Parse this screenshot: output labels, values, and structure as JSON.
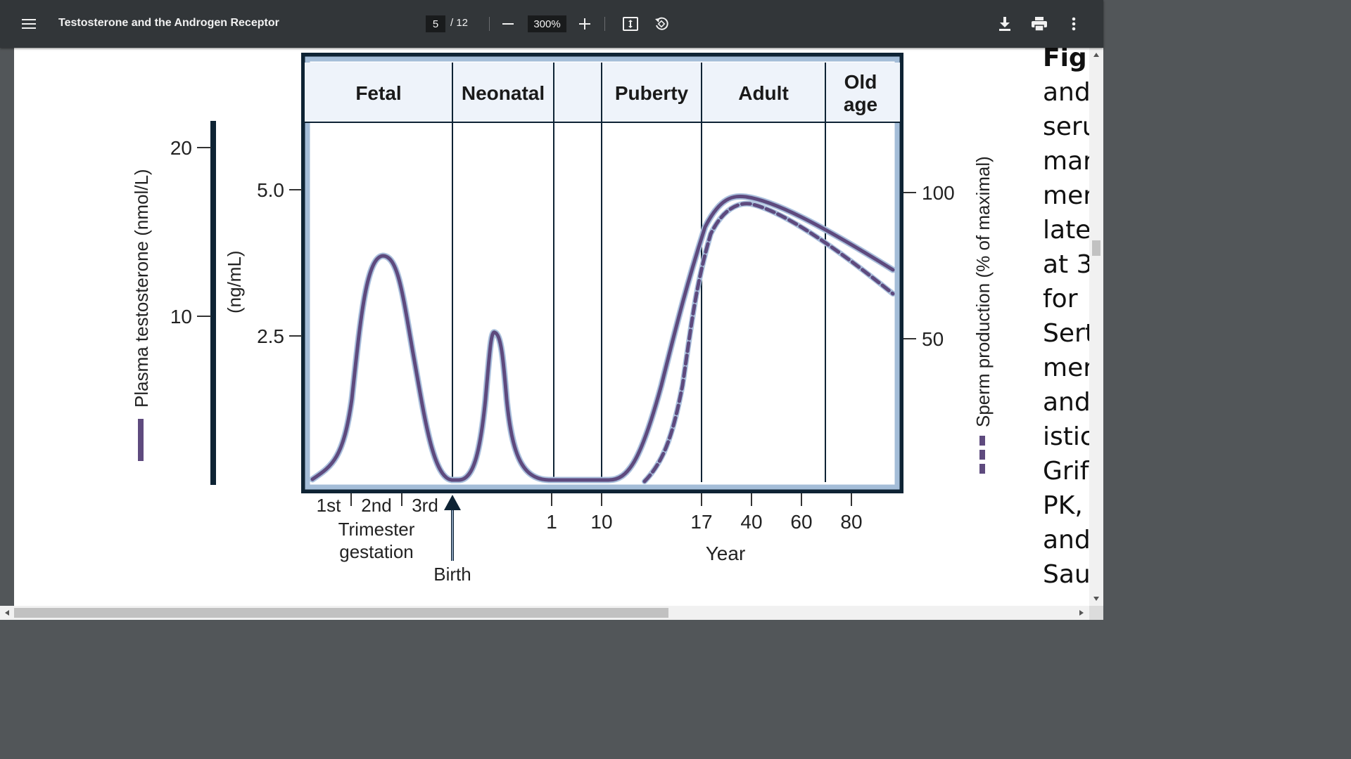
{
  "viewer": {
    "title": "Testosterone and the Androgen Receptor",
    "page_current": "5",
    "page_total": "/ 12",
    "zoom": "300%",
    "icons": [
      "menu-icon",
      "zoom-out-icon",
      "zoom-in-icon",
      "fit-page-icon",
      "rotate-icon",
      "download-icon",
      "print-icon",
      "more-vert-icon"
    ]
  },
  "figure": {
    "phases": [
      "Fetal",
      "Neonatal",
      "Puberty",
      "Adult",
      "Old",
      "age"
    ],
    "left_axis_label": "Plasma testosterone (nmol/L)",
    "left_axis_ticks": [
      "20",
      "10"
    ],
    "ngml_label": "(ng/mL)",
    "ngml_ticks": [
      "5.0",
      "2.5"
    ],
    "right_axis_label": "Sperm production (% of maximal)",
    "right_axis_ticks": [
      "100",
      "50"
    ],
    "trimesters": [
      "1st",
      "2nd",
      "3rd"
    ],
    "trimester_label_1": "Trimester",
    "trimester_label_2": "gestation",
    "birth_label": "Birth",
    "year_ticks": [
      "1",
      "10",
      "17",
      "40",
      "60",
      "80"
    ],
    "year_label": "Year",
    "colors": {
      "testosterone": "#5e4a7e",
      "halo": "#a9bfdc",
      "frame": "#0e2334",
      "frame_inner": "#a4bdd8",
      "header_bg": "#eef3fa"
    }
  },
  "caption": {
    "lines": [
      "Fig.",
      "and",
      "seru",
      "mar",
      "mer",
      "late",
      "at 3",
      "for",
      "Sert",
      "mer",
      "and",
      "istic",
      "Grif",
      "PK,",
      "and",
      "Sau"
    ]
  }
}
